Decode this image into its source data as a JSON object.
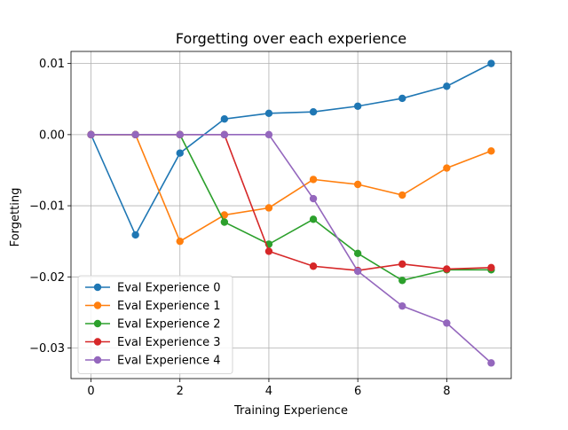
{
  "chart_data": {
    "type": "line",
    "title": "Forgetting over each experience",
    "xlabel": "Training Experience",
    "ylabel": "Forgetting",
    "xlim": [
      -0.45,
      9.45
    ],
    "ylim": [
      -0.0343,
      0.0117
    ],
    "xticks": [
      0,
      2,
      4,
      6,
      8
    ],
    "xtick_labels": [
      "0",
      "2",
      "4",
      "6",
      "8"
    ],
    "yticks": [
      -0.03,
      -0.02,
      -0.01,
      0.0,
      0.01
    ],
    "ytick_labels": [
      "−0.03",
      "−0.02",
      "−0.01",
      "0.00",
      "0.01"
    ],
    "grid": true,
    "legend_position": "lower-left",
    "series": [
      {
        "name": "Eval Experience 0",
        "color": "#1f77b4",
        "x": [
          0,
          1,
          2,
          3,
          4,
          5,
          6,
          7,
          8,
          9
        ],
        "y": [
          0.0,
          -0.0141,
          -0.0026,
          0.0022,
          0.003,
          0.0032,
          0.004,
          0.0051,
          0.0068,
          0.01
        ]
      },
      {
        "name": "Eval Experience 1",
        "color": "#ff7f0e",
        "x": [
          0,
          1,
          2,
          3,
          4,
          5,
          6,
          7,
          8,
          9
        ],
        "y": [
          0.0,
          0.0,
          -0.015,
          -0.0113,
          -0.0103,
          -0.0063,
          -0.007,
          -0.0085,
          -0.0047,
          -0.0023
        ]
      },
      {
        "name": "Eval Experience 2",
        "color": "#2ca02c",
        "x": [
          0,
          1,
          2,
          3,
          4,
          5,
          6,
          7,
          8,
          9
        ],
        "y": [
          0.0,
          0.0,
          0.0,
          -0.0123,
          -0.0154,
          -0.0119,
          -0.0167,
          -0.0205,
          -0.019,
          -0.019
        ]
      },
      {
        "name": "Eval Experience 3",
        "color": "#d62728",
        "x": [
          0,
          1,
          2,
          3,
          4,
          5,
          6,
          7,
          8,
          9
        ],
        "y": [
          0.0,
          0.0,
          0.0,
          0.0,
          -0.0164,
          -0.0185,
          -0.0191,
          -0.0182,
          -0.0189,
          -0.0187
        ]
      },
      {
        "name": "Eval Experience 4",
        "color": "#9467bd",
        "x": [
          0,
          1,
          2,
          3,
          4,
          5,
          6,
          7,
          8,
          9
        ],
        "y": [
          0.0,
          0.0,
          0.0,
          0.0,
          0.0,
          -0.009,
          -0.0192,
          -0.0241,
          -0.0265,
          -0.0321
        ]
      }
    ]
  }
}
